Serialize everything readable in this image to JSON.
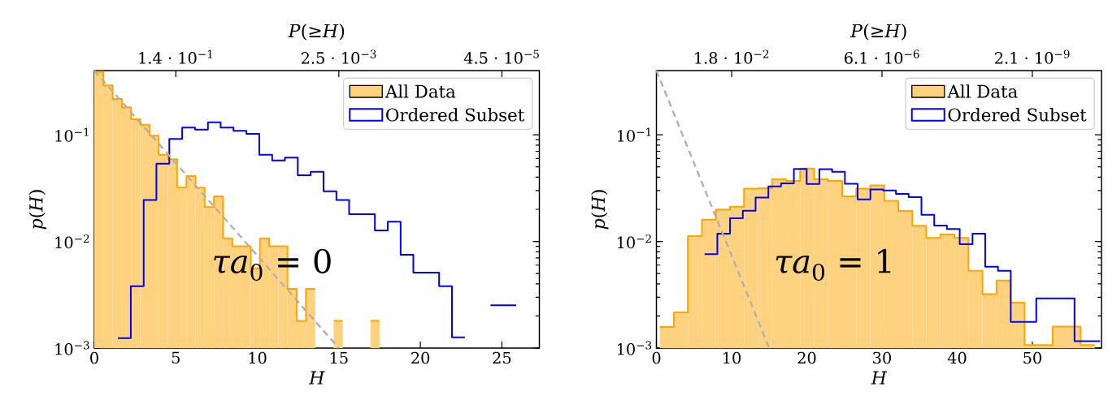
{
  "chart_data": [
    {
      "type": "histogram",
      "xlabel": "H",
      "ylabel": "*p*(*H*)",
      "x2label": "*P*(≥*H*)",
      "xlim": [
        0,
        27.3
      ],
      "ylim": [
        0.001,
        0.4
      ],
      "log": "y",
      "legend": "top right",
      "xticks": [
        0,
        5,
        10,
        15,
        20,
        25
      ],
      "yticks": [
        {
          "value": 0.001,
          "label": "10$^{−3}$"
        },
        {
          "value": 0.01,
          "label": "10$^{−2}$"
        },
        {
          "value": 0.1,
          "label": "10$^{−1}$"
        }
      ],
      "annotations": [
        "1.4 · 10$^{−1}$",
        "2.5 · 10$^{−3}$",
        "4.5 · 10$^{−5}$",
        "*τa*$_{0}$ = 0"
      ],
      "series": [
        {
          "name": "All Data",
          "type": "histogram",
          "color": "#ffd280",
          "bins": [
            0,
            0.56,
            1.13,
            1.69,
            2.26,
            2.82,
            3.39,
            3.95,
            4.52,
            5.08,
            5.65,
            6.21,
            6.77,
            7.34,
            7.9,
            8.47,
            9.03,
            9.6,
            10.16,
            10.73,
            11.29,
            11.85,
            12.42,
            12.98,
            13.55,
            14.11,
            14.68,
            15.24,
            15.81,
            16.37,
            16.94,
            17.5
          ],
          "values": [
            0.39,
            0.29,
            0.217,
            0.181,
            0.14,
            0.124,
            0.098,
            0.065,
            0.059,
            0.032,
            0.041,
            0.032,
            0.021,
            0.0265,
            0.0107,
            0.009,
            0.009,
            0.0056,
            0.0107,
            0.009,
            0.009,
            0.0036,
            0.0018,
            0.0036,
            null,
            null,
            0.0018,
            null,
            null,
            null,
            0.0018
          ]
        },
        {
          "type": "step",
          "color": "#ffa500",
          "x": [
            0,
            0.56,
            1.13,
            1.69,
            2.26,
            2.82,
            3.39,
            3.95,
            4.52,
            5.08,
            5.65,
            6.21,
            6.77,
            7.34,
            7.9,
            8.47,
            9.03,
            9.6,
            10.16,
            10.73,
            11.29,
            11.85,
            12.42,
            12.98,
            13.55,
            14.11,
            14.68,
            15.24,
            15.81,
            16.37,
            16.94,
            17.5
          ],
          "values": [
            0.39,
            0.29,
            0.217,
            0.181,
            0.14,
            0.124,
            0.098,
            0.065,
            0.059,
            0.032,
            0.041,
            0.032,
            0.021,
            0.0265,
            0.0107,
            0.009,
            0.009,
            0.0056,
            0.0107,
            0.009,
            0.009,
            0.0036,
            0.0018,
            0.0036,
            null,
            null,
            0.0018,
            null,
            null,
            null,
            0.0018,
            0.0018
          ]
        },
        {
          "name": "Ordered Subset",
          "type": "step",
          "color": "#0000ff",
          "x": [
            1.45,
            2.24,
            3.03,
            3.81,
            4.6,
            5.39,
            6.18,
            6.97,
            7.75,
            8.54,
            9.33,
            10.12,
            10.91,
            11.69,
            12.48,
            13.27,
            14.06,
            14.85,
            15.63,
            16.42,
            17.21,
            18.0,
            18.79,
            19.57,
            20.36,
            21.15,
            21.94,
            22.73,
            23.51,
            24.3,
            25.09,
            25.88
          ],
          "values": [
            0.00124,
            0.0038,
            0.0245,
            0.0537,
            0.0916,
            0.117,
            0.112,
            0.131,
            0.117,
            0.109,
            0.102,
            0.065,
            0.0575,
            0.061,
            0.0418,
            0.0449,
            0.0295,
            0.0245,
            0.018,
            0.018,
            0.0127,
            0.0153,
            0.0075,
            0.0051,
            0.0051,
            0.0038,
            0.00126,
            null,
            null,
            0.00252,
            0.00252,
            0.00252
          ]
        },
        {
          "type": "line",
          "color": "#b0b0b0",
          "line_style": "dashed",
          "x": [
            0,
            15
          ],
          "values": [
            0.4,
            0.001
          ]
        }
      ]
    },
    {
      "type": "histogram",
      "xlabel": "H",
      "ylabel": "*p*(*H*)",
      "x2label": "*P*(≥*H*)",
      "xlim": [
        0,
        59.2
      ],
      "ylim": [
        0.001,
        0.4
      ],
      "log": "y",
      "legend": "top right",
      "xticks": [
        0,
        10,
        20,
        30,
        40,
        50
      ],
      "yticks": [
        {
          "value": 0.001,
          "label": "10$^{−3}$"
        },
        {
          "value": 0.01,
          "label": "10$^{−2}$"
        },
        {
          "value": 0.1,
          "label": "10$^{−1}$"
        }
      ],
      "annotations": [
        "1.8 · 10$^{−2}$",
        "6.1 · 10$^{−6}$",
        "2.1 · 10$^{−9}$",
        "*τa*$_{0}$ = 1"
      ],
      "series": [
        {
          "name": "All Data",
          "type": "histogram",
          "color": "#ffd280",
          "bins": [
            0.45,
            2.32,
            4.18,
            6.05,
            7.91,
            9.78,
            11.65,
            13.51,
            15.38,
            17.24,
            19.11,
            20.98,
            22.84,
            24.71,
            26.57,
            28.44,
            30.31,
            32.17,
            34.04,
            35.9,
            37.77,
            39.64,
            41.5,
            43.37,
            45.23,
            47.1,
            48.97,
            50.83,
            52.7,
            54.56,
            56.43,
            58.3
          ],
          "values": [
            0.00158,
            0.00216,
            0.0112,
            0.016,
            0.0199,
            0.0212,
            0.0313,
            0.0316,
            0.0383,
            0.037,
            0.0483,
            0.0383,
            0.037,
            0.0265,
            0.0313,
            0.0335,
            0.024,
            0.0193,
            0.014,
            0.0108,
            0.0116,
            0.0108,
            0.0053,
            0.0032,
            0.0043,
            0.00267,
            0.00107,
            0.00107,
            0.00159,
            0.00159,
            0.00107
          ]
        },
        {
          "type": "step",
          "color": "#ffa500",
          "x": [
            0.45,
            2.32,
            4.18,
            6.05,
            7.91,
            9.78,
            11.65,
            13.51,
            15.38,
            17.24,
            19.11,
            20.98,
            22.84,
            24.71,
            26.57,
            28.44,
            30.31,
            32.17,
            34.04,
            35.9,
            37.77,
            39.64,
            41.5,
            43.37,
            45.23,
            47.1,
            48.97,
            50.83,
            52.7,
            54.56,
            56.43,
            58.3
          ],
          "values": [
            0.00158,
            0.00216,
            0.0112,
            0.016,
            0.0199,
            0.0212,
            0.0313,
            0.0316,
            0.0383,
            0.037,
            0.0483,
            0.0383,
            0.037,
            0.0265,
            0.0313,
            0.0335,
            0.024,
            0.0193,
            0.014,
            0.0108,
            0.0116,
            0.0108,
            0.0053,
            0.0032,
            0.0043,
            0.00267,
            0.00107,
            0.00107,
            0.00159,
            0.00159,
            0.00107,
            0.00107
          ]
        },
        {
          "name": "Ordered Subset",
          "type": "step",
          "color": "#0000ff",
          "x": [
            6.4,
            8.1,
            9.79,
            11.49,
            13.19,
            14.89,
            16.58,
            18.28,
            19.98,
            21.67,
            23.37,
            25.07,
            26.76,
            28.46,
            30.16,
            31.86,
            33.55,
            35.25,
            36.95,
            38.64,
            40.34,
            42.04,
            43.73,
            45.43,
            47.13,
            48.83,
            50.52,
            52.22,
            53.92,
            55.61,
            57.31,
            59.01
          ],
          "values": [
            0.0076,
            0.0118,
            0.0165,
            0.0194,
            0.0258,
            0.0328,
            0.0351,
            0.0478,
            0.0346,
            0.0476,
            0.0449,
            0.0347,
            0.0248,
            0.0307,
            0.03,
            0.0279,
            0.026,
            0.0178,
            0.0141,
            0.0131,
            0.0094,
            0.0118,
            0.0058,
            0.0053,
            0.00176,
            0.00176,
            0.00293,
            0.00293,
            0.00293,
            0.00116,
            0.00116,
            0.00116
          ]
        },
        {
          "type": "line",
          "color": "#b0b0b0",
          "line_style": "dashed",
          "x": [
            0,
            15
          ],
          "values": [
            0.4,
            0.001
          ]
        }
      ]
    }
  ]
}
